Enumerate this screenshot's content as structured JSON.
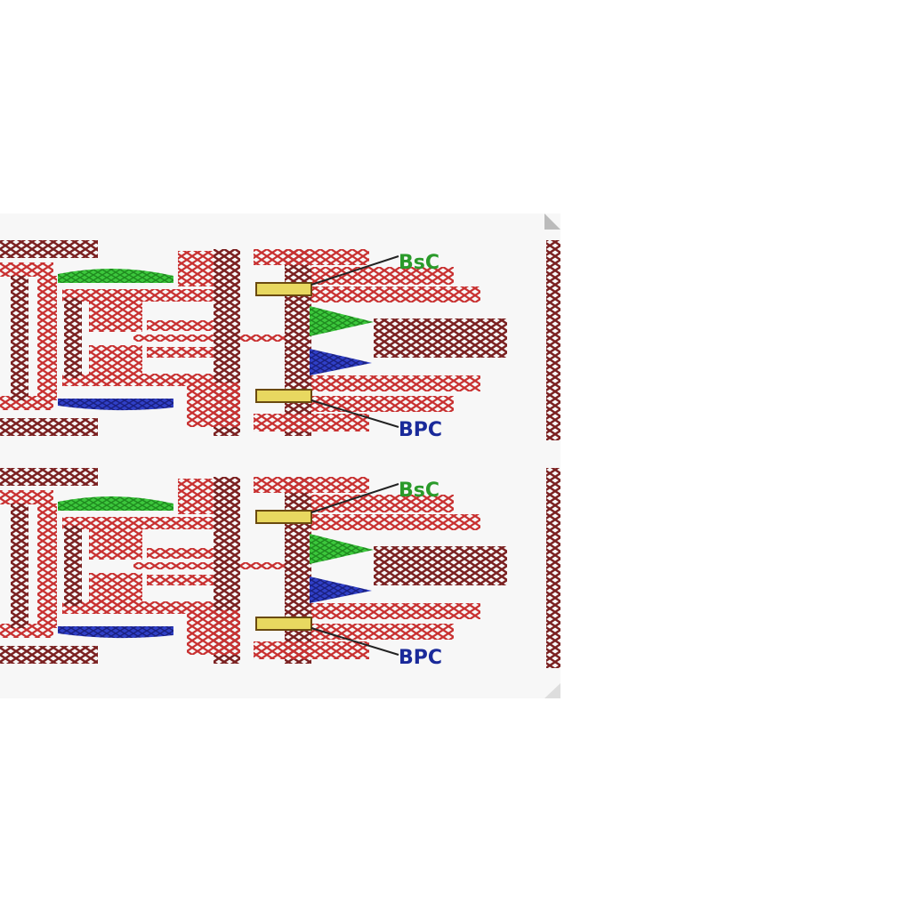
{
  "panels": [
    {
      "id": "top",
      "callouts": [
        {
          "label": "BsC",
          "color": "#2a9a2a"
        },
        {
          "label": "BPC",
          "color": "#1a2a9a"
        }
      ]
    },
    {
      "id": "bottom",
      "callouts": [
        {
          "label": "BsC",
          "color": "#2a9a2a"
        },
        {
          "label": "BPC",
          "color": "#1a2a9a"
        }
      ]
    }
  ],
  "colors": {
    "weave_red": "#c83030",
    "weave_dark": "#7a2020",
    "green_region": "#3cc83c",
    "blue_region": "#3040c8",
    "yellow_marker": "#e8d860",
    "leader_line": "#222222"
  }
}
